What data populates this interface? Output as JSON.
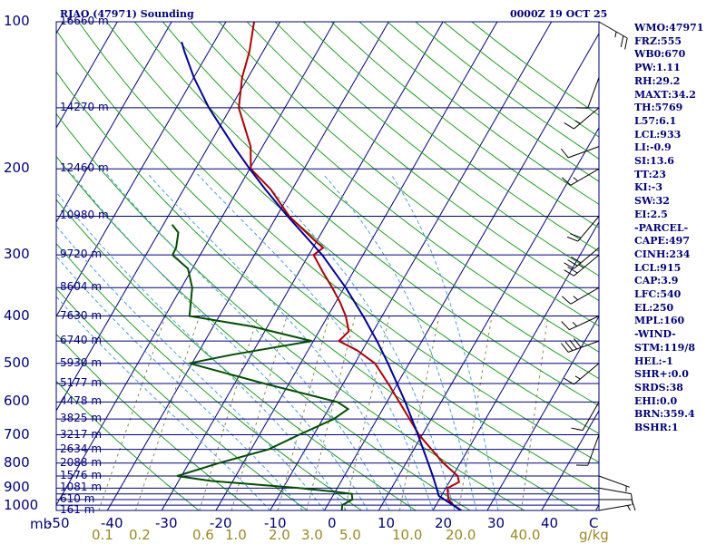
{
  "header": {
    "title": "RJAO (47971) Sounding",
    "date": "0000Z 19 OCT 25"
  },
  "indices": [
    "WMO:47971",
    "FRZ:555",
    "WB0:670",
    "PW:1.11",
    "RH:29.2",
    "MAXT:34.2",
    "TH:5769",
    "L57:6.1",
    "LCL:933",
    "LI:-0.9",
    "SI:13.6",
    "TT:23",
    "KI:-3",
    "SW:32",
    "EI:2.5",
    "-PARCEL-",
    "CAPE:497",
    "CINH:234",
    "LCL:915",
    "CAP:3.9",
    "LFC:540",
    "EL:250",
    "MPL:160",
    "-WIND-",
    "STM:119/8",
    "HEL:-1",
    "SHR+:0.0",
    "SRDS:38",
    "EHI:0.0",
    "BRN:359.4",
    "BSHR:1"
  ],
  "chart_data": {
    "type": "skew-t",
    "y_scale": "log-pressure",
    "pressure_range": [
      1000,
      100
    ],
    "pressure_ticks": [
      "100",
      "200",
      "300",
      "400",
      "500",
      "600",
      "700",
      "800",
      "900",
      "1000"
    ],
    "pressure_unit_label": "mb",
    "temperature_ticks": [
      "-50",
      "-40",
      "-30",
      "-20",
      "-10",
      "0",
      "10",
      "20",
      "30",
      "40",
      "C"
    ],
    "mixing_ratio_ticks": [
      "0.1",
      "0.2",
      "0.6",
      "1.0",
      "2.0",
      "3.0",
      "5.0",
      "10.0",
      "20.0",
      "40.0",
      "g/kg"
    ],
    "height_labels": [
      {
        "p": 100,
        "label": "16660 m"
      },
      {
        "p": 150,
        "label": "14270 m"
      },
      {
        "p": 200,
        "label": "12460 m"
      },
      {
        "p": 250,
        "label": "10980 m"
      },
      {
        "p": 300,
        "label": "9720 m"
      },
      {
        "p": 350,
        "label": "8604 m"
      },
      {
        "p": 400,
        "label": "7630 m"
      },
      {
        "p": 450,
        "label": "6740 m"
      },
      {
        "p": 500,
        "label": "5930 m"
      },
      {
        "p": 550,
        "label": "5177 m"
      },
      {
        "p": 600,
        "label": "4478 m"
      },
      {
        "p": 650,
        "label": "3825 m"
      },
      {
        "p": 700,
        "label": "3217 m"
      },
      {
        "p": 750,
        "label": "2634 m"
      },
      {
        "p": 800,
        "label": "2088 m"
      },
      {
        "p": 850,
        "label": "1576 m"
      },
      {
        "p": 900,
        "label": "1081 m"
      },
      {
        "p": 950,
        "label": "610 m"
      },
      {
        "p": 1000,
        "label": "161 m"
      }
    ],
    "series": [
      {
        "key": "temperature",
        "color": "#b00000",
        "points": [
          [
            1000,
            25.2
          ],
          [
            975,
            23.2
          ],
          [
            950,
            21.7
          ],
          [
            925,
            21.0
          ],
          [
            900,
            20.3
          ],
          [
            875,
            21.8
          ],
          [
            850,
            20.9
          ],
          [
            800,
            16.9
          ],
          [
            700,
            9.4
          ],
          [
            600,
            2.3
          ],
          [
            550,
            -1.7
          ],
          [
            500,
            -6.3
          ],
          [
            470,
            -11.0
          ],
          [
            450,
            -15.3
          ],
          [
            430,
            -14.5
          ],
          [
            400,
            -16.7
          ],
          [
            375,
            -19.2
          ],
          [
            350,
            -22.2
          ],
          [
            325,
            -25.6
          ],
          [
            300,
            -29.1
          ],
          [
            290,
            -28.1
          ],
          [
            280,
            -30.5
          ],
          [
            250,
            -37.7
          ],
          [
            220,
            -44.0
          ],
          [
            200,
            -49.8
          ],
          [
            180,
            -52.2
          ],
          [
            150,
            -58.5
          ],
          [
            130,
            -61.1
          ],
          [
            115,
            -62.5
          ],
          [
            100,
            -64.8
          ]
        ]
      },
      {
        "key": "dewpoint",
        "color": "#005000",
        "points": [
          [
            1000,
            3.2
          ],
          [
            975,
            2.7
          ],
          [
            950,
            4.0
          ],
          [
            925,
            3.3
          ],
          [
            915,
            -0.2
          ],
          [
            900,
            -7.1
          ],
          [
            870,
            -24.1
          ],
          [
            850,
            -30.8
          ],
          [
            800,
            -24.5
          ],
          [
            750,
            -16.8
          ],
          [
            700,
            -12.7
          ],
          [
            650,
            -8.0
          ],
          [
            620,
            -6.4
          ],
          [
            600,
            -9.1
          ],
          [
            550,
            -24.5
          ],
          [
            500,
            -40.5
          ],
          [
            480,
            -33.5
          ],
          [
            450,
            -20.3
          ],
          [
            420,
            -33.0
          ],
          [
            400,
            -45.5
          ],
          [
            350,
            -48.0
          ],
          [
            320,
            -50.8
          ],
          [
            300,
            -55.1
          ],
          [
            290,
            -55.2
          ],
          [
            270,
            -56.4
          ],
          [
            260,
            -58.4
          ]
        ]
      },
      {
        "key": "parcel",
        "color": "#0000a0",
        "points": [
          [
            1000,
            25.2
          ],
          [
            960,
            21.8
          ],
          [
            933,
            19.5
          ],
          [
            900,
            18.3
          ],
          [
            850,
            16.3
          ],
          [
            800,
            14.1
          ],
          [
            700,
            9.2
          ],
          [
            600,
            3.4
          ],
          [
            500,
            -3.9
          ],
          [
            450,
            -8.3
          ],
          [
            400,
            -13.5
          ],
          [
            350,
            -19.7
          ],
          [
            300,
            -27.5
          ],
          [
            250,
            -38.0
          ],
          [
            220,
            -45.0
          ],
          [
            200,
            -50.0
          ],
          [
            180,
            -55.3
          ],
          [
            150,
            -64.0
          ],
          [
            130,
            -70.0
          ],
          [
            115,
            -74.5
          ],
          [
            110,
            -76.0
          ]
        ]
      }
    ],
    "wind_barbs": [
      {
        "p": 100,
        "dir": 120,
        "spd": 25
      },
      {
        "p": 130,
        "dir": 200,
        "spd": 10
      },
      {
        "p": 150,
        "dir": 230,
        "spd": 15
      },
      {
        "p": 180,
        "dir": 250,
        "spd": 10
      },
      {
        "p": 200,
        "dir": 240,
        "spd": 15
      },
      {
        "p": 250,
        "dir": 220,
        "spd": 20
      },
      {
        "p": 290,
        "dir": 230,
        "spd": 30
      },
      {
        "p": 300,
        "dir": 230,
        "spd": 25
      },
      {
        "p": 350,
        "dir": 240,
        "spd": 15
      },
      {
        "p": 400,
        "dir": 245,
        "spd": 15
      },
      {
        "p": 450,
        "dir": 250,
        "spd": 40
      },
      {
        "p": 500,
        "dir": 230,
        "spd": 15
      },
      {
        "p": 600,
        "dir": 210,
        "spd": 10
      },
      {
        "p": 700,
        "dir": 200,
        "spd": 10
      },
      {
        "p": 850,
        "dir": 110,
        "spd": 5
      },
      {
        "p": 900,
        "dir": 100,
        "spd": 10
      },
      {
        "p": 950,
        "dir": 90,
        "spd": 10
      },
      {
        "p": 1000,
        "dir": 80,
        "spd": 5
      }
    ],
    "grid": true,
    "legend": "none"
  }
}
